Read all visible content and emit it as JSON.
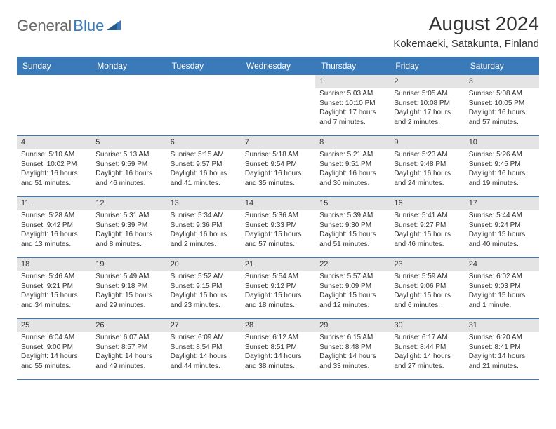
{
  "logo": {
    "textGray": "General",
    "textBlue": "Blue"
  },
  "title": "August 2024",
  "location": "Kokemaeki, Satakunta, Finland",
  "colors": {
    "headerBar": "#3a7ab8",
    "dayNumBg": "#e4e4e4",
    "rowBorder": "#3a7ab8",
    "textPrimary": "#333333",
    "logoGray": "#6a6a6a",
    "logoBlue": "#3a7ab8",
    "pageBg": "#ffffff"
  },
  "dayHeaders": [
    "Sunday",
    "Monday",
    "Tuesday",
    "Wednesday",
    "Thursday",
    "Friday",
    "Saturday"
  ],
  "weeks": [
    [
      null,
      null,
      null,
      null,
      {
        "num": "1",
        "sunrise": "5:03 AM",
        "sunset": "10:10 PM",
        "daylight": "17 hours and 7 minutes."
      },
      {
        "num": "2",
        "sunrise": "5:05 AM",
        "sunset": "10:08 PM",
        "daylight": "17 hours and 2 minutes."
      },
      {
        "num": "3",
        "sunrise": "5:08 AM",
        "sunset": "10:05 PM",
        "daylight": "16 hours and 57 minutes."
      }
    ],
    [
      {
        "num": "4",
        "sunrise": "5:10 AM",
        "sunset": "10:02 PM",
        "daylight": "16 hours and 51 minutes."
      },
      {
        "num": "5",
        "sunrise": "5:13 AM",
        "sunset": "9:59 PM",
        "daylight": "16 hours and 46 minutes."
      },
      {
        "num": "6",
        "sunrise": "5:15 AM",
        "sunset": "9:57 PM",
        "daylight": "16 hours and 41 minutes."
      },
      {
        "num": "7",
        "sunrise": "5:18 AM",
        "sunset": "9:54 PM",
        "daylight": "16 hours and 35 minutes."
      },
      {
        "num": "8",
        "sunrise": "5:21 AM",
        "sunset": "9:51 PM",
        "daylight": "16 hours and 30 minutes."
      },
      {
        "num": "9",
        "sunrise": "5:23 AM",
        "sunset": "9:48 PM",
        "daylight": "16 hours and 24 minutes."
      },
      {
        "num": "10",
        "sunrise": "5:26 AM",
        "sunset": "9:45 PM",
        "daylight": "16 hours and 19 minutes."
      }
    ],
    [
      {
        "num": "11",
        "sunrise": "5:28 AM",
        "sunset": "9:42 PM",
        "daylight": "16 hours and 13 minutes."
      },
      {
        "num": "12",
        "sunrise": "5:31 AM",
        "sunset": "9:39 PM",
        "daylight": "16 hours and 8 minutes."
      },
      {
        "num": "13",
        "sunrise": "5:34 AM",
        "sunset": "9:36 PM",
        "daylight": "16 hours and 2 minutes."
      },
      {
        "num": "14",
        "sunrise": "5:36 AM",
        "sunset": "9:33 PM",
        "daylight": "15 hours and 57 minutes."
      },
      {
        "num": "15",
        "sunrise": "5:39 AM",
        "sunset": "9:30 PM",
        "daylight": "15 hours and 51 minutes."
      },
      {
        "num": "16",
        "sunrise": "5:41 AM",
        "sunset": "9:27 PM",
        "daylight": "15 hours and 46 minutes."
      },
      {
        "num": "17",
        "sunrise": "5:44 AM",
        "sunset": "9:24 PM",
        "daylight": "15 hours and 40 minutes."
      }
    ],
    [
      {
        "num": "18",
        "sunrise": "5:46 AM",
        "sunset": "9:21 PM",
        "daylight": "15 hours and 34 minutes."
      },
      {
        "num": "19",
        "sunrise": "5:49 AM",
        "sunset": "9:18 PM",
        "daylight": "15 hours and 29 minutes."
      },
      {
        "num": "20",
        "sunrise": "5:52 AM",
        "sunset": "9:15 PM",
        "daylight": "15 hours and 23 minutes."
      },
      {
        "num": "21",
        "sunrise": "5:54 AM",
        "sunset": "9:12 PM",
        "daylight": "15 hours and 18 minutes."
      },
      {
        "num": "22",
        "sunrise": "5:57 AM",
        "sunset": "9:09 PM",
        "daylight": "15 hours and 12 minutes."
      },
      {
        "num": "23",
        "sunrise": "5:59 AM",
        "sunset": "9:06 PM",
        "daylight": "15 hours and 6 minutes."
      },
      {
        "num": "24",
        "sunrise": "6:02 AM",
        "sunset": "9:03 PM",
        "daylight": "15 hours and 1 minute."
      }
    ],
    [
      {
        "num": "25",
        "sunrise": "6:04 AM",
        "sunset": "9:00 PM",
        "daylight": "14 hours and 55 minutes."
      },
      {
        "num": "26",
        "sunrise": "6:07 AM",
        "sunset": "8:57 PM",
        "daylight": "14 hours and 49 minutes."
      },
      {
        "num": "27",
        "sunrise": "6:09 AM",
        "sunset": "8:54 PM",
        "daylight": "14 hours and 44 minutes."
      },
      {
        "num": "28",
        "sunrise": "6:12 AM",
        "sunset": "8:51 PM",
        "daylight": "14 hours and 38 minutes."
      },
      {
        "num": "29",
        "sunrise": "6:15 AM",
        "sunset": "8:48 PM",
        "daylight": "14 hours and 33 minutes."
      },
      {
        "num": "30",
        "sunrise": "6:17 AM",
        "sunset": "8:44 PM",
        "daylight": "14 hours and 27 minutes."
      },
      {
        "num": "31",
        "sunrise": "6:20 AM",
        "sunset": "8:41 PM",
        "daylight": "14 hours and 21 minutes."
      }
    ]
  ],
  "labels": {
    "sunrise": "Sunrise: ",
    "sunset": "Sunset: ",
    "daylight": "Daylight: "
  }
}
